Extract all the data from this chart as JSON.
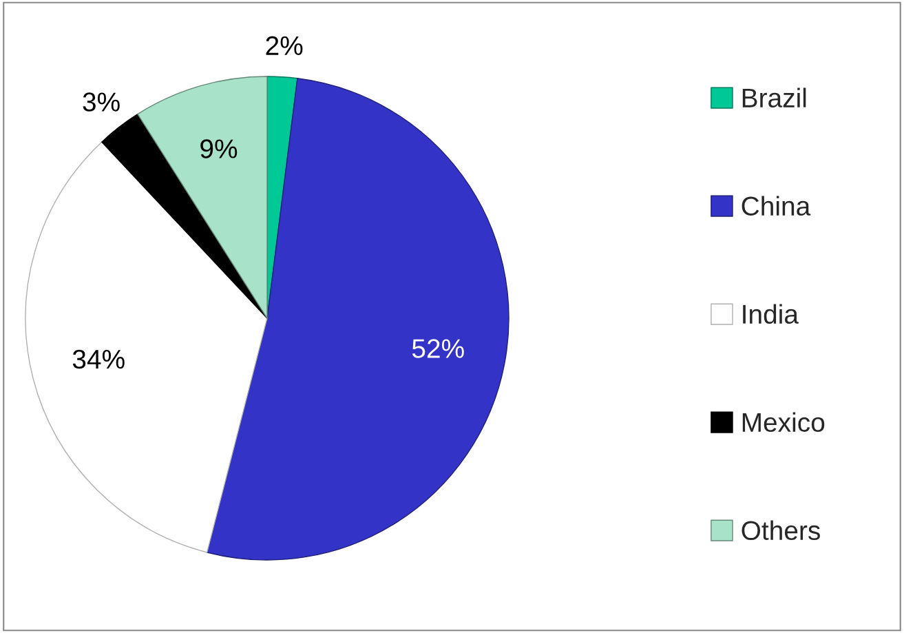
{
  "chart_data": {
    "type": "pie",
    "categories": [
      "Brazil",
      "China",
      "India",
      "Mexico",
      "Others"
    ],
    "values": [
      2,
      52,
      34,
      3,
      9
    ],
    "colors": [
      "#00c896",
      "#3333c8",
      "#ffffff",
      "#000000",
      "#a8e2c8"
    ],
    "value_labels": [
      "2%",
      "52%",
      "34%",
      "3%",
      "9%"
    ],
    "legend": "right"
  }
}
